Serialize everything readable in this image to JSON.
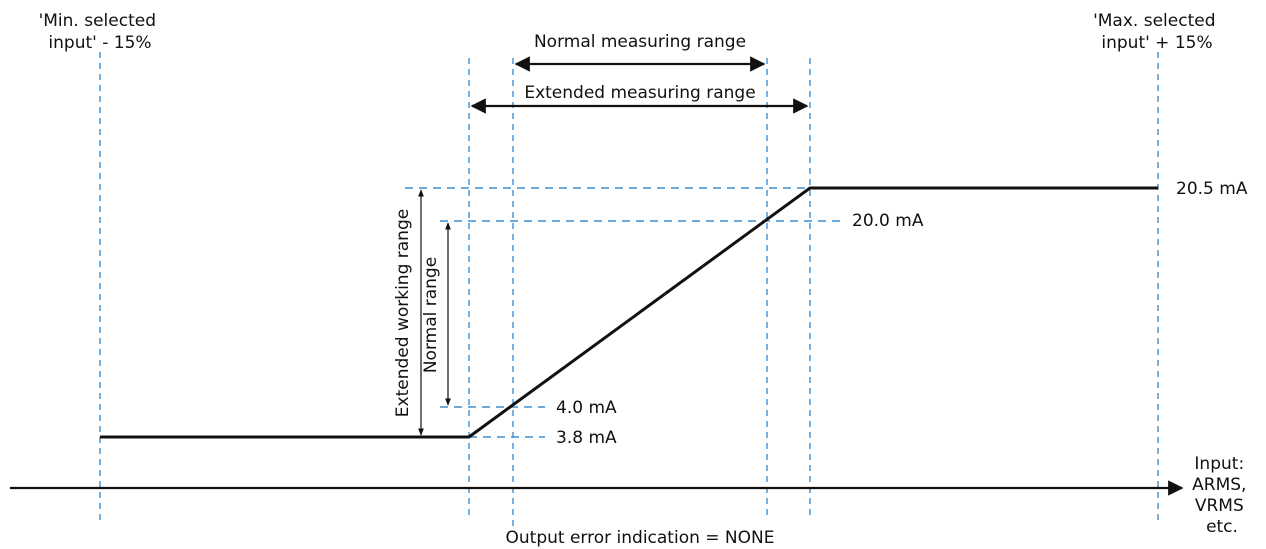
{
  "labels": {
    "min_input": [
      "'Min. selected",
      "input' - 15%"
    ],
    "max_input": [
      "'Max. selected",
      "input' + 15%"
    ],
    "normal_measuring_range": "Normal measuring range",
    "extended_measuring_range": "Extended measuring range",
    "extended_working_range": "Extended working range",
    "normal_range": "Normal range",
    "input_axis": [
      "Input:",
      "ARMS,",
      "VRMS",
      "etc."
    ],
    "footer": "Output error indication = NONE"
  },
  "levels": {
    "max_out": "20.5 mA",
    "high": "20.0 mA",
    "low": "4.0 mA",
    "min_out": "3.8 mA"
  },
  "colors": {
    "guide": "#3f8fd2",
    "line": "#111111"
  }
}
